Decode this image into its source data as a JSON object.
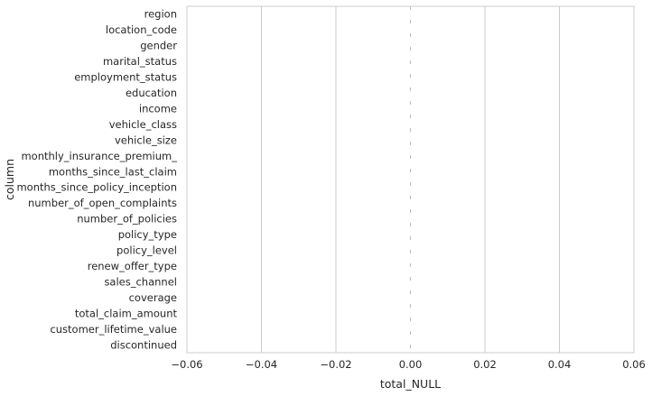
{
  "chart_data": {
    "type": "bar",
    "orientation": "horizontal",
    "categories": [
      "region",
      "location_code",
      "gender",
      "marital_status",
      "employment_status",
      "education",
      "income",
      "vehicle_class",
      "vehicle_size",
      "monthly_insurance_premium_",
      "months_since_last_claim",
      "months_since_policy_inception",
      "number_of_open_complaints",
      "number_of_policies",
      "policy_type",
      "policy_level",
      "renew_offer_type",
      "sales_channel",
      "coverage",
      "total_claim_amount",
      "customer_lifetime_value",
      "discontinued"
    ],
    "values": [
      0,
      0,
      0,
      0,
      0,
      0,
      0,
      0,
      0,
      0,
      0,
      0,
      0,
      0,
      0,
      0,
      0,
      0,
      0,
      0,
      0,
      0
    ],
    "xlabel": "total_NULL",
    "ylabel": "column",
    "xlim": [
      -0.06,
      0.06
    ],
    "xticks": [
      -0.06,
      -0.04,
      -0.02,
      0.0,
      0.02,
      0.04,
      0.06
    ],
    "xtick_labels": [
      "−0.06",
      "−0.04",
      "−0.02",
      "0.00",
      "0.02",
      "0.04",
      "0.06"
    ],
    "grid": "vertical",
    "legend": "none",
    "colors": {
      "grid": "#cccccc",
      "spine": "#cccccc",
      "text": "#262626",
      "zero_line": "#bbbbbb"
    }
  }
}
